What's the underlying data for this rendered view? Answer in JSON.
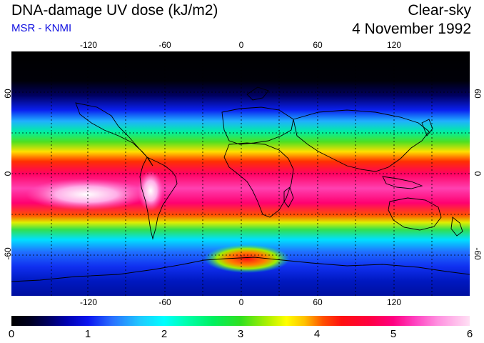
{
  "header": {
    "title": "DNA-damage UV dose (kJ/m2)",
    "source": "MSR - KNMI",
    "condition": "Clear-sky",
    "date": "4 November 1992"
  },
  "map": {
    "longitude_ticks": [
      "-120",
      "-60",
      "0",
      "60",
      "120"
    ],
    "latitude_ticks": [
      "60",
      "0",
      "-60"
    ],
    "gridlines": true,
    "projection": "equirectangular"
  },
  "colorbar": {
    "labels": [
      "0",
      "1",
      "2",
      "3",
      "4",
      "5",
      "6"
    ],
    "unit": "kJ/m2",
    "range": [
      0,
      6
    ]
  },
  "colors": {
    "subtitle": "#1010e0",
    "background": "#ffffff"
  }
}
